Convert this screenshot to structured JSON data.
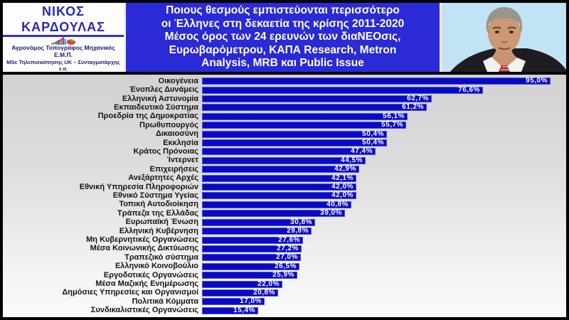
{
  "header": {
    "brand": {
      "name": "ΝΙΚΟΣ ΚΑΡΔΟΥΛΑΣ",
      "subtitle_line1": "Αγρονόμος Τοπογράφος Μηχανικός Ε.Μ.Π.",
      "subtitle_line2": "MSc Τηλεπισκόπησης UK – Συνταγματάρχης ε.α.",
      "logo_icons": [
        "bar-chart-icon",
        "trend-arrow-icon",
        "pie-chart-icon"
      ]
    },
    "title": "Ποιους θεσμούς εμπιστεύονται περισσότερο\nοι Έλληνες στη δεκαετία της κρίσης 2011-2020\nΜέσος όρος των 24 ερευνών των διαΝΕΟσις,\nΕυρωβαρόμετρου, ΚΑΠΑ Research, Metron\nAnalysis, MRB και Public Issue",
    "portrait": "man-in-dark-suit-photo"
  },
  "colors": {
    "bar": "#0a0ac4",
    "title_box": "#2a2ad6",
    "brand_text": "#2b2bb0",
    "value_text": "#ffffff",
    "chart_bg_top": "#d2d2d2",
    "chart_bg_bottom": "#fbfbfb"
  },
  "chart_data": {
    "type": "bar",
    "orientation": "horizontal",
    "title": "Ποιους θεσμούς εμπιστεύονται περισσότερο οι Έλληνες στη δεκαετία της κρίσης 2011-2020",
    "xlabel": "",
    "ylabel": "",
    "xlim": [
      0,
      100
    ],
    "grid": false,
    "legend": false,
    "value_suffix": "%",
    "decimal_separator": ",",
    "categories": [
      "Οικογένεια",
      "Ένοπλες Δυνάμεις",
      "Ελληνική Αστυνομία",
      "Εκπαιδευτικό Σύστημα",
      "Προεδρία της Δημοκρατίας",
      "Πρωθυπουργός",
      "Δικαιοσύνη",
      "Εκκλησία",
      "Κράτος Πρόνοιας",
      "Ίντερνετ",
      "Επιχειρήσεις",
      "Ανεξάρτητες Αρχές",
      "Εθνική Υπηρεσία Πληροφοριών",
      "Εθνικό Σύστημα Υγείας",
      "Τοπική Αυτοδιοίκηση",
      "Τράπεζα της Ελλάδας",
      "Ευρωπαϊκή Ένωση",
      "Ελληνική Κυβέρνηση",
      "Μη Κυβερνητικές Οργανώσεις",
      "Μέσα Κοινωνικής Δικτύωσης",
      "Τραπεζικό σύστημα",
      "Ελληνικό Κοινοβούλιο",
      "Εργοδοτικές Οργανώσεις",
      "Μέσα Μαζικής Ενημέρωσης",
      "Δημόσιες Υπηρεσίες και Οργανισμοί",
      "Πολιτικά Κόμματα",
      "Συνδικαλιστικές Οργανώσεις"
    ],
    "values": [
      95.0,
      76.6,
      62.7,
      61.2,
      56.1,
      55.7,
      50.4,
      50.4,
      47.4,
      44.5,
      42.9,
      42.1,
      42.0,
      42.0,
      40.8,
      39.0,
      30.8,
      29.8,
      27.6,
      27.2,
      27.0,
      26.5,
      25.9,
      22.0,
      20.8,
      17.0,
      15.4
    ]
  }
}
